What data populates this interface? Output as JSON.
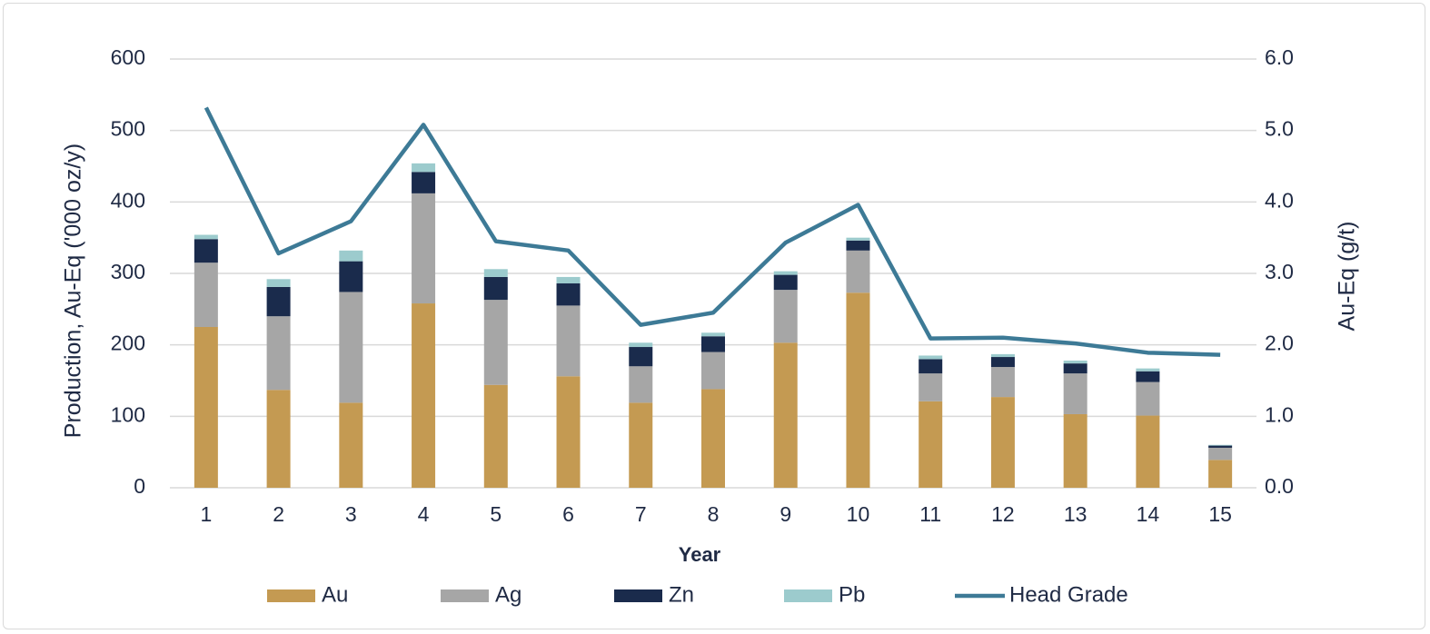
{
  "chart_data": {
    "type": "bar",
    "stacked": true,
    "categories": [
      "1",
      "2",
      "3",
      "4",
      "5",
      "6",
      "7",
      "8",
      "9",
      "10",
      "11",
      "12",
      "13",
      "14",
      "15"
    ],
    "series": [
      {
        "name": "Au",
        "color": "#c49a52",
        "values": [
          225,
          137,
          119,
          258,
          144,
          156,
          119,
          138,
          203,
          273,
          121,
          127,
          103,
          101,
          39
        ]
      },
      {
        "name": "Ag",
        "color": "#a6a6a6",
        "values": [
          90,
          103,
          155,
          154,
          119,
          99,
          51,
          52,
          74,
          59,
          39,
          42,
          57,
          47,
          17
        ]
      },
      {
        "name": "Zn",
        "color": "#1a2b4c",
        "values": [
          33,
          41,
          43,
          30,
          32,
          31,
          27,
          22,
          21,
          14,
          20,
          14,
          14,
          15,
          3
        ]
      },
      {
        "name": "Pb",
        "color": "#9ccbcd",
        "values": [
          6,
          11,
          15,
          12,
          11,
          9,
          6,
          5,
          5,
          4,
          5,
          4,
          4,
          4,
          1
        ]
      }
    ],
    "line_series": {
      "name": "Head Grade",
      "color": "#3d7a96",
      "axis": "right",
      "values": [
        5.32,
        3.28,
        3.73,
        5.08,
        3.45,
        3.32,
        2.28,
        2.45,
        3.43,
        3.96,
        2.09,
        2.1,
        2.02,
        1.89,
        1.86
      ]
    },
    "xlabel": "Year",
    "ylabel": "Production, Au-Eq ('000 oz/y)",
    "ylabel_right": "Au-Eq (g/t)",
    "ylim": [
      0,
      600
    ],
    "ylim_right": [
      0,
      6
    ],
    "yticks": [
      "0",
      "100",
      "200",
      "300",
      "400",
      "500",
      "600"
    ],
    "yticks_right": [
      "0.0",
      "1.0",
      "2.0",
      "3.0",
      "4.0",
      "5.0",
      "6.0"
    ],
    "grid": true,
    "legend_position": "bottom"
  }
}
